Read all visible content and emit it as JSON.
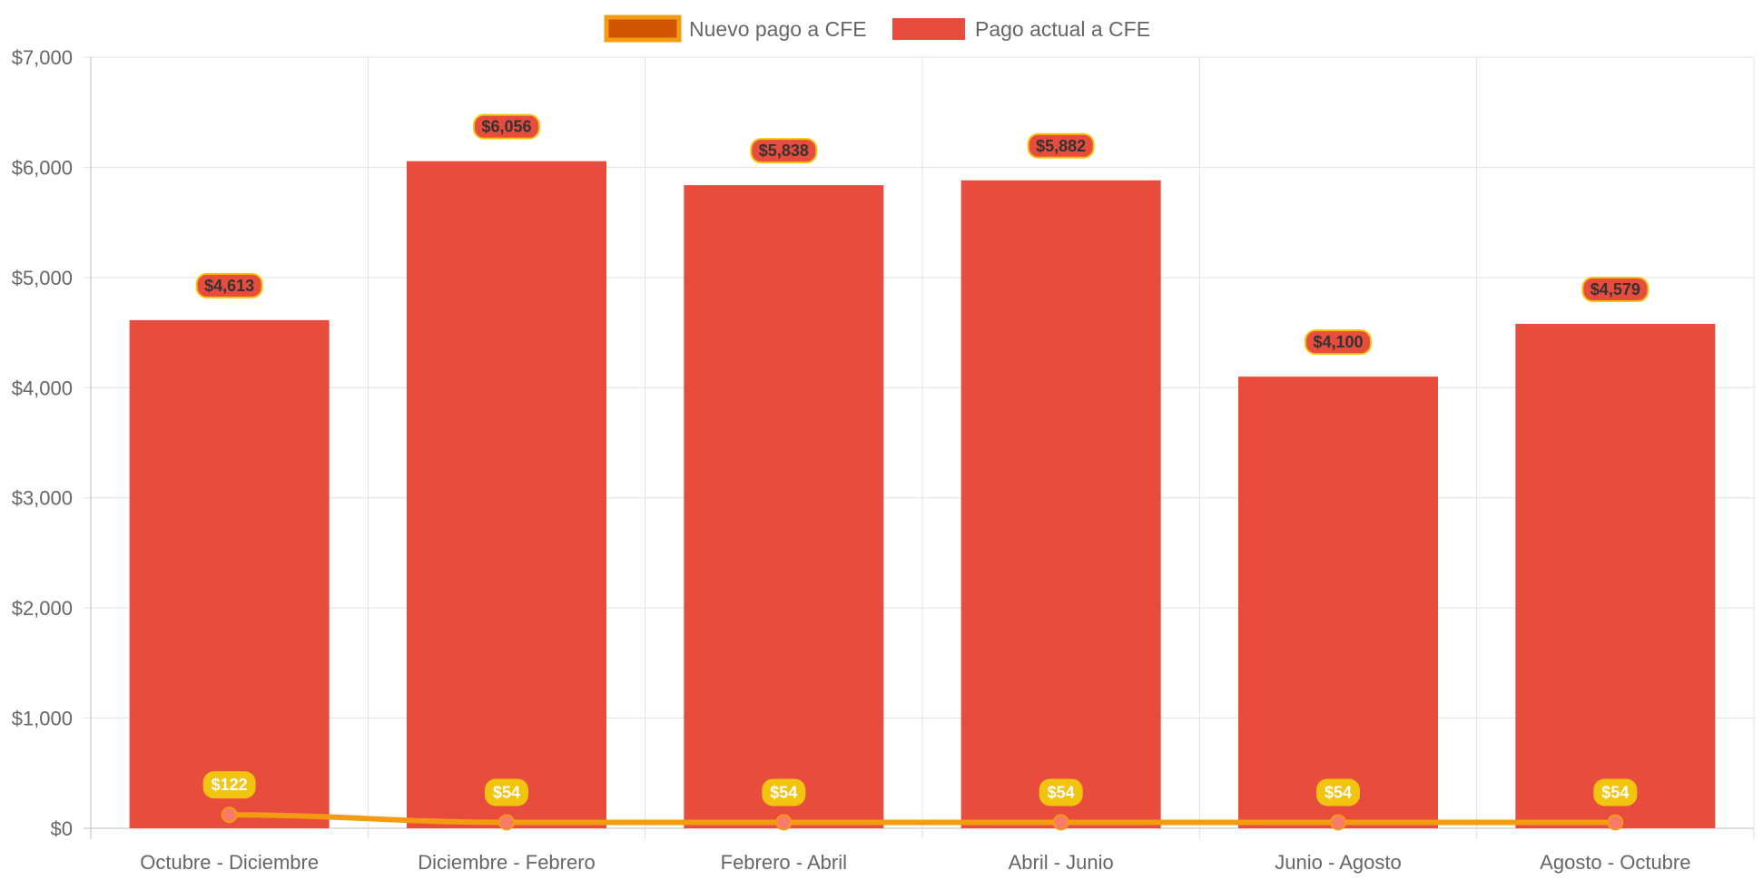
{
  "chart_data": {
    "type": "bar",
    "categories": [
      "Octubre - Diciembre",
      "Diciembre - Febrero",
      "Febrero - Abril",
      "Abril - Junio",
      "Junio - Agosto",
      "Agosto - Octubre"
    ],
    "ylim": [
      0,
      7000
    ],
    "yticks": [
      0,
      1000,
      2000,
      3000,
      4000,
      5000,
      6000,
      7000
    ],
    "ytick_labels": [
      "$0",
      "$1,000",
      "$2,000",
      "$3,000",
      "$4,000",
      "$5,000",
      "$6,000",
      "$7,000"
    ],
    "grid": true,
    "legend_position": "top",
    "series": [
      {
        "name": "Nuevo pago a CFE",
        "type": "line",
        "values": [
          122,
          54,
          54,
          54,
          54,
          54
        ],
        "labels": [
          "$122",
          "$54",
          "$54",
          "$54",
          "$54",
          "$54"
        ],
        "color": "#f39c12",
        "legend_fill": "#d35400",
        "point_color": "#f87a6a",
        "label_bg": "#f1c40f",
        "label_text_color": "#ffffff"
      },
      {
        "name": "Pago actual a CFE",
        "type": "bar",
        "values": [
          4613,
          6056,
          5838,
          5882,
          4100,
          4579
        ],
        "labels": [
          "$4,613",
          "$6,056",
          "$5,838",
          "$5,882",
          "$4,100",
          "$4,579"
        ],
        "color": "#e74c3c",
        "label_border": "#f1c40f",
        "label_text_color": "#333333"
      }
    ]
  }
}
